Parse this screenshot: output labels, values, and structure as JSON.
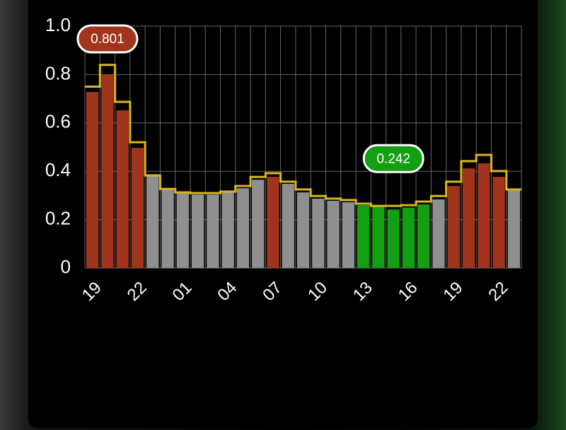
{
  "chart_data": {
    "type": "bar",
    "categories": [
      "19",
      null,
      null,
      "22",
      null,
      null,
      "01",
      null,
      null,
      "04",
      null,
      null,
      "07",
      null,
      null,
      "10",
      null,
      null,
      "13",
      null,
      null,
      "16",
      null,
      null,
      "19",
      null,
      null,
      "22",
      null
    ],
    "series": [
      {
        "values": [
          0.728,
          0.801,
          0.652,
          0.497,
          0.38,
          0.327,
          0.31,
          0.304,
          0.304,
          0.313,
          0.33,
          0.365,
          0.377,
          0.348,
          0.313,
          0.287,
          0.278,
          0.272,
          0.26,
          0.254,
          0.242,
          0.25,
          0.263,
          0.284,
          0.339,
          0.412,
          0.433,
          0.377,
          0.325
        ],
        "colors": [
          "#a0341c",
          "#a0341c",
          "#a0341c",
          "#a0341c",
          "#8f8f8f",
          "#8f8f8f",
          "#8f8f8f",
          "#8f8f8f",
          "#8f8f8f",
          "#8f8f8f",
          "#8f8f8f",
          "#8f8f8f",
          "#a0341c",
          "#8f8f8f",
          "#8f8f8f",
          "#8f8f8f",
          "#8f8f8f",
          "#8f8f8f",
          "#12a012",
          "#12a012",
          "#12a012",
          "#12a012",
          "#12a012",
          "#8f8f8f",
          "#a0341c",
          "#a0341c",
          "#a0341c",
          "#a0341c",
          "#8f8f8f"
        ]
      },
      {
        "type": "step",
        "color": "#d8b81c",
        "values": [
          0.75,
          0.84,
          0.687,
          0.52,
          0.383,
          0.327,
          0.313,
          0.31,
          0.31,
          0.316,
          0.339,
          0.377,
          0.392,
          0.357,
          0.325,
          0.298,
          0.287,
          0.281,
          0.266,
          0.257,
          0.257,
          0.26,
          0.275,
          0.298,
          0.357,
          0.442,
          0.468,
          0.401,
          0.325
        ]
      }
    ],
    "ylim": [
      0,
      1
    ],
    "yticks": [
      0,
      0.2,
      0.4,
      0.6,
      0.8,
      {
        "value": 1,
        "label": "1.0"
      }
    ],
    "grid": true
  }
}
